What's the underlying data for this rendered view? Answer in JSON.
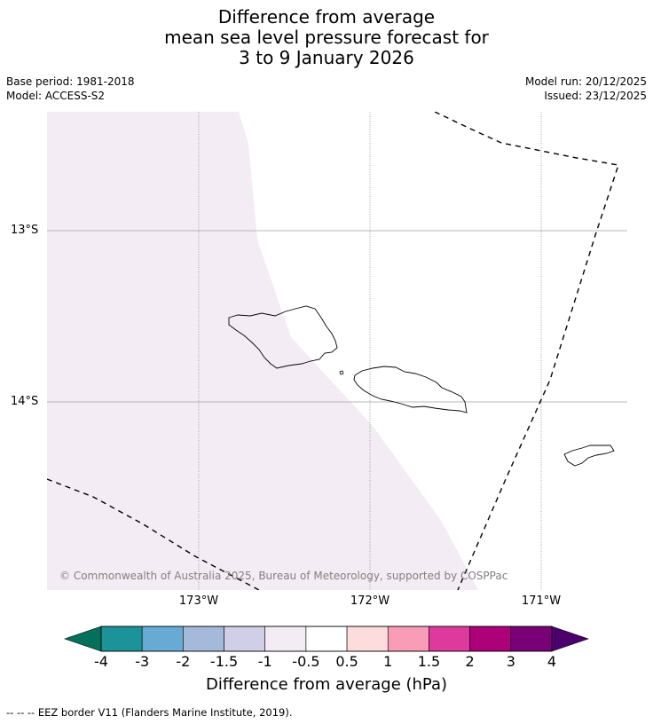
{
  "title": {
    "line1": "Difference from average",
    "line2": "mean sea level pressure forecast for",
    "line3": "3 to 9 January 2026"
  },
  "meta": {
    "base_period": "Base period: 1981-2018",
    "model": "Model: ACCESS-S2",
    "model_run": "Model run: 20/12/2025",
    "issued": "Issued: 23/12/2025"
  },
  "map": {
    "lat_labels": [
      "13°S",
      "14°S"
    ],
    "lon_labels": [
      "173°W",
      "172°W",
      "171°W"
    ],
    "copyright": "© Commonwealth of Australia 2025, Bureau of Meteorology, supported by COSPPac",
    "fill_category": "-1 to -0.5",
    "fill_color": "#f4ecf4",
    "land_outline_color": "#000000",
    "eez_line_color": "#000000"
  },
  "colorbar": {
    "title": "Difference from average (hPa)",
    "ticks": [
      "-4",
      "-3",
      "-2",
      "-1.5",
      "-1",
      "-0.5",
      "0.5",
      "1",
      "1.5",
      "2",
      "3",
      "4"
    ],
    "colors": [
      "#1b9398",
      "#67abd5",
      "#a5b9da",
      "#d1cfe5",
      "#f4ecf4",
      "#ffffff",
      "#fcdcdc",
      "#f89cb8",
      "#de3a9e",
      "#ad0179",
      "#7a0078"
    ],
    "under_color": "#03705b",
    "over_color": "#4b006b"
  },
  "footer": {
    "legend_text": "--  --  -- EEZ border V11 (Flanders Marine Institute, 2019)."
  }
}
